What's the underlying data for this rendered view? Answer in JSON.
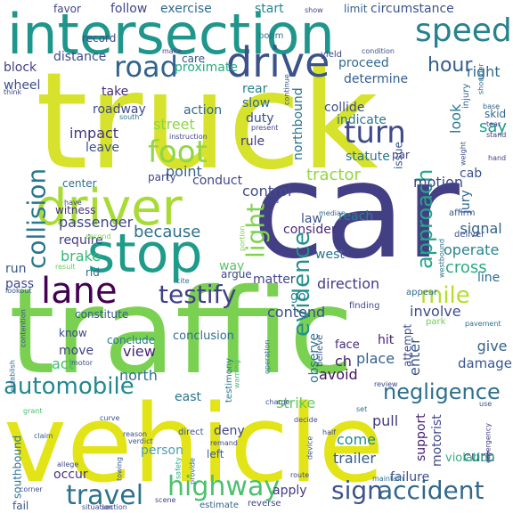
{
  "words": [
    {
      "text": "truck",
      "color": "#d6e22b"
    },
    {
      "text": "car",
      "color": "#433f84"
    },
    {
      "text": "traffic",
      "color": "#7ad151"
    },
    {
      "text": "vehicle",
      "color": "#e2e418"
    },
    {
      "text": "intersection",
      "color": "#1f968b"
    },
    {
      "text": "stop",
      "color": "#1e9c89"
    },
    {
      "text": "driver",
      "color": "#a8db34"
    },
    {
      "text": "drive",
      "color": "#3b528b"
    },
    {
      "text": "lane",
      "color": "#440154"
    },
    {
      "text": "foot",
      "color": "#8fd744"
    },
    {
      "text": "speed",
      "color": "#26828e"
    },
    {
      "text": "collision",
      "color": "#2a788e"
    },
    {
      "text": "road",
      "color": "#33638d"
    },
    {
      "text": "turn",
      "color": "#3e4a89"
    },
    {
      "text": "light",
      "color": "#7fd34e"
    },
    {
      "text": "testify",
      "color": "#424086"
    },
    {
      "text": "mile",
      "color": "#b5de2b"
    },
    {
      "text": "approach",
      "color": "#22a785"
    },
    {
      "text": "evidence",
      "color": "#21918c"
    },
    {
      "text": "hour",
      "color": "#355f8d"
    },
    {
      "text": "travel",
      "color": "#2c728e"
    },
    {
      "text": "highway",
      "color": "#4ac16d"
    },
    {
      "text": "accident",
      "color": "#31688e"
    },
    {
      "text": "sign",
      "color": "#3a548c"
    },
    {
      "text": "automobile",
      "color": "#23888e"
    },
    {
      "text": "negligence",
      "color": "#2e6f8e"
    },
    {
      "text": "right",
      "color": "#31678e"
    },
    {
      "text": "look",
      "color": "#29798e"
    },
    {
      "text": "say",
      "color": "#1fa088"
    },
    {
      "text": "tractor",
      "color": "#93d741"
    },
    {
      "text": "because",
      "color": "#2d718e"
    },
    {
      "text": "motion",
      "color": "#3f4889"
    },
    {
      "text": "signal",
      "color": "#32658e"
    },
    {
      "text": "cross",
      "color": "#27ad81"
    },
    {
      "text": "operate",
      "color": "#25848e"
    },
    {
      "text": "street",
      "color": "#8bd646"
    },
    {
      "text": "impact",
      "color": "#453581"
    },
    {
      "text": "control",
      "color": "#3d4e8a"
    },
    {
      "text": "point",
      "color": "#355e8d"
    },
    {
      "text": "passenger",
      "color": "#404688"
    },
    {
      "text": "brake",
      "color": "#35b779"
    },
    {
      "text": "direction",
      "color": "#443983"
    },
    {
      "text": "matter",
      "color": "#414487"
    },
    {
      "text": "contend",
      "color": "#3c4f8a"
    },
    {
      "text": "involve",
      "color": "#3e4c8a"
    },
    {
      "text": "observe",
      "color": "#2a768e"
    },
    {
      "text": "place",
      "color": "#34608d"
    },
    {
      "text": "view",
      "color": "#482677"
    },
    {
      "text": "north",
      "color": "#2d708e"
    },
    {
      "text": "strike",
      "color": "#5ec962"
    },
    {
      "text": "come",
      "color": "#23898e"
    },
    {
      "text": "trailer",
      "color": "#375b8d"
    },
    {
      "text": "curb",
      "color": "#3a538b"
    },
    {
      "text": "pull",
      "color": "#453882"
    },
    {
      "text": "person",
      "color": "#4d9fb0"
    },
    {
      "text": "deny",
      "color": "#404588"
    },
    {
      "text": "occur",
      "color": "#46327e"
    },
    {
      "text": "apply",
      "color": "#443a83"
    },
    {
      "text": "support",
      "color": "#482173"
    },
    {
      "text": "motorist",
      "color": "#3f4788"
    },
    {
      "text": "failure",
      "color": "#3b518b"
    },
    {
      "text": "violation",
      "color": "#2db27d"
    },
    {
      "text": "give",
      "color": "#33638d"
    },
    {
      "text": "damage",
      "color": "#38598c"
    },
    {
      "text": "attempt",
      "color": "#3e4989"
    },
    {
      "text": "enter",
      "color": "#39568c"
    },
    {
      "text": "avoid",
      "color": "#471063"
    },
    {
      "text": "ch",
      "color": "#481f70"
    },
    {
      "text": "hit",
      "color": "#482475"
    },
    {
      "text": "face",
      "color": "#482878"
    },
    {
      "text": "east",
      "color": "#2b748e"
    },
    {
      "text": "act",
      "color": "#40bd72"
    },
    {
      "text": "move",
      "color": "#414487"
    },
    {
      "text": "know",
      "color": "#3e4989"
    },
    {
      "text": "conclude",
      "color": "#297a8e"
    },
    {
      "text": "conclusion",
      "color": "#2f6c8e"
    },
    {
      "text": "constitute",
      "color": "#375a8c"
    },
    {
      "text": "go",
      "color": "#24868e"
    },
    {
      "text": "way",
      "color": "#54c568"
    },
    {
      "text": "argue",
      "color": "#3f4788"
    },
    {
      "text": "west",
      "color": "#2c718e"
    },
    {
      "text": "consider",
      "color": "#482878"
    },
    {
      "text": "law",
      "color": "#3a548c"
    },
    {
      "text": "reach",
      "color": "#26818e"
    },
    {
      "text": "jury",
      "color": "#31678e"
    },
    {
      "text": "cab",
      "color": "#3b528b"
    },
    {
      "text": "line",
      "color": "#2e6e8e"
    },
    {
      "text": "pass",
      "color": "#3f4889"
    },
    {
      "text": "run",
      "color": "#39558c"
    },
    {
      "text": "rid",
      "color": "#2f6b8e"
    },
    {
      "text": "require",
      "color": "#443a83"
    },
    {
      "text": "rule",
      "color": "#433e85"
    },
    {
      "text": "duty",
      "color": "#3d4d8a"
    },
    {
      "text": "slow",
      "color": "#31688e"
    },
    {
      "text": "rear",
      "color": "#26828e"
    },
    {
      "text": "action",
      "color": "#306a8e"
    },
    {
      "text": "roadway",
      "color": "#3e4a89"
    },
    {
      "text": "take",
      "color": "#472d7b"
    },
    {
      "text": "leave",
      "color": "#3b518b"
    },
    {
      "text": "party",
      "color": "#3f4788"
    },
    {
      "text": "conduct",
      "color": "#3f4788"
    },
    {
      "text": "center",
      "color": "#2e6f8e"
    },
    {
      "text": "witness",
      "color": "#46307e"
    },
    {
      "text": "northbound",
      "color": "#2c728e"
    },
    {
      "text": "collide",
      "color": "#3d4d8a"
    },
    {
      "text": "indicate",
      "color": "#2a778e"
    },
    {
      "text": "statute",
      "color": "#2c738e"
    },
    {
      "text": "issue",
      "color": "#39568c"
    },
    {
      "text": "par",
      "color": "#3f4788"
    },
    {
      "text": "proceed",
      "color": "#2f6b8e"
    },
    {
      "text": "determine",
      "color": "#355f8d"
    },
    {
      "text": "proximate",
      "color": "#25ac82"
    },
    {
      "text": "care",
      "color": "#3b528b"
    },
    {
      "text": "record",
      "color": "#3f4889"
    },
    {
      "text": "distance",
      "color": "#3e4c8a"
    },
    {
      "text": "block",
      "color": "#433e85"
    },
    {
      "text": "wheel",
      "color": "#3e4c8a"
    },
    {
      "text": "follow",
      "color": "#3e4989"
    },
    {
      "text": "exercise",
      "color": "#2f6c8e"
    },
    {
      "text": "start",
      "color": "#24878e"
    },
    {
      "text": "limit",
      "color": "#34618d"
    },
    {
      "text": "circumstance",
      "color": "#3a548c"
    },
    {
      "text": "favor",
      "color": "#3f4788"
    },
    {
      "text": "boom",
      "color": "#2b758e"
    },
    {
      "text": "yield",
      "color": "#3f4788"
    },
    {
      "text": "make",
      "color": "#414487"
    },
    {
      "text": "condition",
      "color": "#3b528b"
    },
    {
      "text": "shoulder",
      "color": "#2d708e"
    },
    {
      "text": "base",
      "color": "#34608d"
    },
    {
      "text": "skid",
      "color": "#31688e"
    },
    {
      "text": "tear",
      "color": "#3e4989"
    },
    {
      "text": "stand",
      "color": "#433e85"
    },
    {
      "text": "hand",
      "color": "#414487"
    },
    {
      "text": "injury",
      "color": "#2e6e8e"
    },
    {
      "text": "affirm",
      "color": "#39568c"
    },
    {
      "text": "deliver",
      "color": "#3b528b"
    },
    {
      "text": "westbound",
      "color": "#2d708e"
    },
    {
      "text": "appear",
      "color": "#2f6c8e"
    },
    {
      "text": "finding",
      "color": "#3d4e8a"
    },
    {
      "text": "park",
      "color": "#6ccd5a"
    },
    {
      "text": "pavement",
      "color": "#2c728e"
    },
    {
      "text": "review",
      "color": "#3e4a89"
    },
    {
      "text": "believe",
      "color": "#37598c"
    },
    {
      "text": "decide",
      "color": "#3e4c8a"
    },
    {
      "text": "set",
      "color": "#2c728e"
    },
    {
      "text": "half",
      "color": "#3f4788"
    },
    {
      "text": "device",
      "color": "#3a548c"
    },
    {
      "text": "warning",
      "color": "#41bd72"
    },
    {
      "text": "testimony",
      "color": "#2a788e"
    },
    {
      "text": "direct",
      "color": "#3a548c"
    },
    {
      "text": "remand",
      "color": "#3e4c8a"
    },
    {
      "text": "left",
      "color": "#355f8d"
    },
    {
      "text": "safety",
      "color": "#29af7f"
    },
    {
      "text": "provide",
      "color": "#2e6d8e"
    },
    {
      "text": "curve",
      "color": "#3b518b"
    },
    {
      "text": "towing",
      "color": "#37598c"
    },
    {
      "text": "reverse",
      "color": "#3f4788"
    },
    {
      "text": "estimate",
      "color": "#33638d"
    },
    {
      "text": "route",
      "color": "#3e4989"
    },
    {
      "text": "maintain",
      "color": "#2c718e"
    },
    {
      "text": "southbound",
      "color": "#2d718e"
    },
    {
      "text": "fail",
      "color": "#39568c"
    },
    {
      "text": "corner",
      "color": "#3b528b"
    },
    {
      "text": "situation",
      "color": "#3e4a89"
    },
    {
      "text": "section",
      "color": "#3f4788"
    },
    {
      "text": "scene",
      "color": "#414487"
    },
    {
      "text": "emergency",
      "color": "#433e85"
    },
    {
      "text": "allege",
      "color": "#3e4c8a"
    },
    {
      "text": "claim",
      "color": "#34618d"
    },
    {
      "text": "grant",
      "color": "#46c06f"
    },
    {
      "text": "establish",
      "color": "#2e6e8e"
    },
    {
      "text": "lookout",
      "color": "#3a548c"
    },
    {
      "text": "result",
      "color": "#6ccd5a"
    },
    {
      "text": "second",
      "color": "#7ad151"
    },
    {
      "text": "motor",
      "color": "#3e4c8a"
    },
    {
      "text": "contention",
      "color": "#3b528b"
    },
    {
      "text": "think",
      "color": "#3f4788"
    },
    {
      "text": "south",
      "color": "#2d708e"
    },
    {
      "text": "continue",
      "color": "#3a548c"
    },
    {
      "text": "present",
      "color": "#3e4989"
    },
    {
      "text": "instruction",
      "color": "#414487"
    },
    {
      "text": "end",
      "color": "#3f4788"
    },
    {
      "text": "portion",
      "color": "#7ad151"
    },
    {
      "text": "median",
      "color": "#31688e"
    },
    {
      "text": "show",
      "color": "#3f4788"
    },
    {
      "text": "weight",
      "color": "#3b528b"
    },
    {
      "text": "use",
      "color": "#3e4c8a"
    },
    {
      "text": "operation",
      "color": "#2c728e"
    },
    {
      "text": "charge",
      "color": "#3e4989"
    },
    {
      "text": "cite",
      "color": "#2d708e"
    },
    {
      "text": "verdict",
      "color": "#3a548c"
    },
    {
      "text": "have",
      "color": "#3f4788"
    },
    {
      "text": "reason",
      "color": "#3e4c8a"
    }
  ]
}
